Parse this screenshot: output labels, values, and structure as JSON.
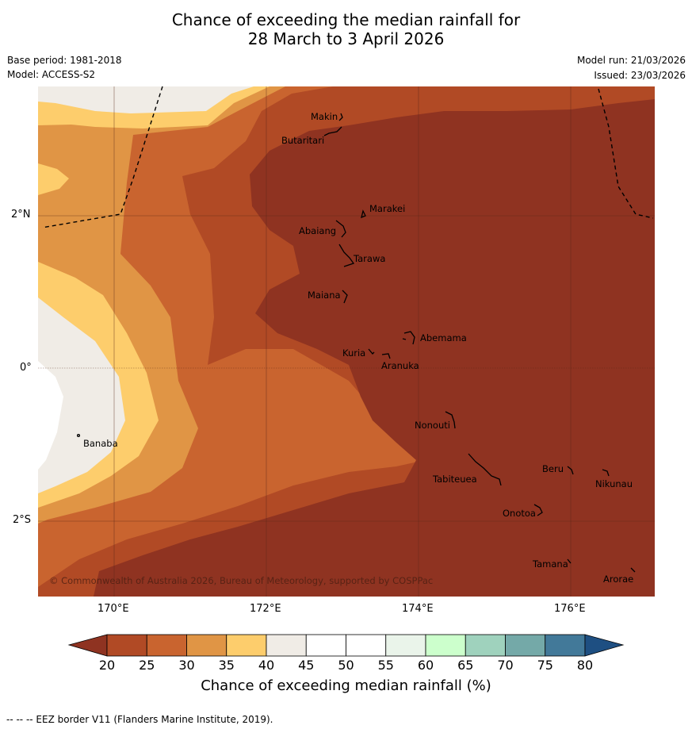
{
  "header": {
    "title_line1": "Chance of exceeding the median rainfall for",
    "title_line2": "28 March to 3 April 2026",
    "base_period": "Base period: 1981-2018",
    "model": "Model: ACCESS-S2",
    "model_run": "Model run: 21/03/2026",
    "issued": "Issued: 23/03/2026"
  },
  "map": {
    "lat_labels": [
      "2°N",
      "0°",
      "2°S"
    ],
    "lon_labels": [
      "170°E",
      "172°E",
      "174°E",
      "176°E"
    ],
    "places": [
      "Makin",
      "Butaritari",
      "Marakei",
      "Abaiang",
      "Tarawa",
      "Maiana",
      "Abemama",
      "Kuria",
      "Aranuka",
      "Banaba",
      "Nonouti",
      "Tabiteuea",
      "Beru",
      "Nikunau",
      "Onotoa",
      "Tamana",
      "Arorae"
    ],
    "copyright": "© Commonwealth of Australia 2026, Bureau of Meteorology, supported by COSPPac"
  },
  "colorbar": {
    "ticks": [
      "20",
      "25",
      "30",
      "35",
      "40",
      "45",
      "50",
      "55",
      "60",
      "65",
      "70",
      "75",
      "80"
    ],
    "colors": [
      "#b14a25",
      "#c9642f",
      "#e09545",
      "#fdcd6c",
      "#f0ece6",
      "#ffffff",
      "#ffffff",
      "#eaf4ea",
      "#ccffcc",
      "#9fd2bd",
      "#74a9a8",
      "#427999"
    ],
    "low_color": "#8f3321",
    "high_color": "#1e4f82",
    "title": "Chance of exceeding median rainfall (%)"
  },
  "footer": "--  --  -- EEZ border V11 (Flanders Marine Institute, 2019)."
}
